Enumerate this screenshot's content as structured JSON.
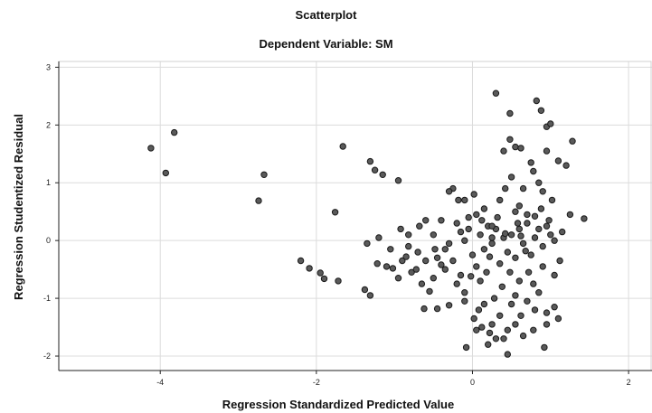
{
  "chart_data": {
    "type": "scatter",
    "title": "Scatterplot",
    "subtitle": "Dependent Variable: SM",
    "xlabel": "Regression Standardized Predicted Value",
    "ylabel": "Regression Studentized Residual",
    "xlim": [
      -5.3,
      2.3
    ],
    "ylim": [
      -2.25,
      3.1
    ],
    "xticks": [
      -4,
      -2,
      0,
      2
    ],
    "yticks": [
      -2,
      -1,
      0,
      1,
      2,
      3
    ],
    "xtick_labels": [
      "-4",
      "-2",
      "0",
      "2"
    ],
    "ytick_labels": [
      "-2",
      "-1",
      "0",
      "1",
      "2",
      "3"
    ],
    "grid": true,
    "points": [
      [
        -4.12,
        1.6
      ],
      [
        -3.82,
        1.87
      ],
      [
        -3.93,
        1.17
      ],
      [
        -2.67,
        1.14
      ],
      [
        -2.74,
        0.69
      ],
      [
        -1.66,
        1.63
      ],
      [
        -1.31,
        1.37
      ],
      [
        -1.25,
        1.22
      ],
      [
        -1.15,
        1.14
      ],
      [
        -0.95,
        1.04
      ],
      [
        -1.76,
        0.49
      ],
      [
        -2.2,
        -0.35
      ],
      [
        -2.09,
        -0.48
      ],
      [
        -1.95,
        -0.56
      ],
      [
        -1.9,
        -0.66
      ],
      [
        -1.72,
        -0.7
      ],
      [
        -1.38,
        -0.85
      ],
      [
        -1.31,
        -0.95
      ],
      [
        -1.35,
        -0.05
      ],
      [
        -1.2,
        0.05
      ],
      [
        -1.22,
        -0.4
      ],
      [
        -1.1,
        -0.45
      ],
      [
        -1.02,
        -0.48
      ],
      [
        -0.95,
        -0.65
      ],
      [
        -0.9,
        -0.35
      ],
      [
        -0.85,
        -0.28
      ],
      [
        -0.92,
        0.2
      ],
      [
        -0.82,
        -0.1
      ],
      [
        -0.78,
        -0.55
      ],
      [
        -0.7,
        -0.2
      ],
      [
        -0.65,
        -0.75
      ],
      [
        -0.6,
        -0.35
      ],
      [
        -0.55,
        -0.88
      ],
      [
        -0.5,
        0.1
      ],
      [
        -0.48,
        -0.15
      ],
      [
        -0.45,
        -0.3
      ],
      [
        -0.4,
        0.35
      ],
      [
        -0.35,
        -0.5
      ],
      [
        -0.3,
        -0.05
      ],
      [
        -0.25,
        -0.35
      ],
      [
        -0.2,
        0.3
      ],
      [
        -0.15,
        -0.6
      ],
      [
        -0.1,
        0.0
      ],
      [
        -0.05,
        0.2
      ],
      [
        0.0,
        -0.25
      ],
      [
        0.05,
        -0.45
      ],
      [
        0.1,
        0.1
      ],
      [
        0.15,
        -0.15
      ],
      [
        0.2,
        0.25
      ],
      [
        0.25,
        -0.05
      ],
      [
        0.3,
        0.2
      ],
      [
        0.35,
        -0.4
      ],
      [
        0.4,
        0.05
      ],
      [
        0.45,
        -0.2
      ],
      [
        0.5,
        0.1
      ],
      [
        0.55,
        -0.3
      ],
      [
        0.6,
        0.2
      ],
      [
        0.65,
        -0.05
      ],
      [
        0.7,
        0.3
      ],
      [
        0.75,
        -0.25
      ],
      [
        0.8,
        0.05
      ],
      [
        0.85,
        0.2
      ],
      [
        0.9,
        -0.1
      ],
      [
        0.95,
        0.25
      ],
      [
        1.0,
        0.1
      ],
      [
        -0.62,
        -1.18
      ],
      [
        -0.45,
        -1.18
      ],
      [
        -0.3,
        -1.12
      ],
      [
        -0.1,
        -1.05
      ],
      [
        -0.6,
        0.35
      ],
      [
        -0.25,
        0.9
      ],
      [
        -0.3,
        0.85
      ],
      [
        -0.1,
        0.7
      ],
      [
        0.02,
        0.8
      ],
      [
        -0.18,
        0.7
      ],
      [
        0.08,
        -1.2
      ],
      [
        0.02,
        -1.35
      ],
      [
        0.12,
        -1.5
      ],
      [
        0.22,
        -1.6
      ],
      [
        0.3,
        -1.7
      ],
      [
        0.4,
        -1.7
      ],
      [
        -0.08,
        -1.85
      ],
      [
        0.05,
        -1.55
      ],
      [
        0.2,
        -1.8
      ],
      [
        0.55,
        -1.45
      ],
      [
        0.65,
        -1.65
      ],
      [
        0.45,
        -1.97
      ],
      [
        0.92,
        -1.85
      ],
      [
        0.78,
        -1.55
      ],
      [
        1.1,
        -1.35
      ],
      [
        1.05,
        -1.15
      ],
      [
        0.95,
        -1.25
      ],
      [
        0.7,
        -1.05
      ],
      [
        0.5,
        -1.1
      ],
      [
        0.85,
        -0.9
      ],
      [
        1.12,
        -0.35
      ],
      [
        0.98,
        0.35
      ],
      [
        0.88,
        0.55
      ],
      [
        1.25,
        0.45
      ],
      [
        1.43,
        0.38
      ],
      [
        1.28,
        1.72
      ],
      [
        1.1,
        1.38
      ],
      [
        0.95,
        1.55
      ],
      [
        0.78,
        1.2
      ],
      [
        0.55,
        1.62
      ],
      [
        0.48,
        1.75
      ],
      [
        0.4,
        1.55
      ],
      [
        0.3,
        2.55
      ],
      [
        0.48,
        2.2
      ],
      [
        0.82,
        2.42
      ],
      [
        0.88,
        2.25
      ],
      [
        0.95,
        1.97
      ],
      [
        1.0,
        2.02
      ],
      [
        0.85,
        1.0
      ],
      [
        0.65,
        0.9
      ],
      [
        0.6,
        0.6
      ],
      [
        0.55,
        0.5
      ],
      [
        0.7,
        0.45
      ],
      [
        0.9,
        0.85
      ],
      [
        1.02,
        0.7
      ],
      [
        1.2,
        1.3
      ],
      [
        0.15,
        0.55
      ],
      [
        0.25,
        0.25
      ],
      [
        -0.05,
        0.4
      ],
      [
        0.35,
        0.7
      ],
      [
        0.75,
        1.35
      ],
      [
        0.62,
        1.6
      ],
      [
        0.5,
        1.1
      ],
      [
        0.42,
        0.9
      ],
      [
        0.05,
        0.45
      ],
      [
        -0.2,
        -0.75
      ],
      [
        -0.1,
        -0.9
      ],
      [
        0.1,
        -0.7
      ],
      [
        0.28,
        -1.0
      ],
      [
        0.6,
        -0.7
      ],
      [
        0.72,
        -0.55
      ],
      [
        0.9,
        -0.45
      ],
      [
        1.05,
        -0.6
      ],
      [
        0.18,
        -0.55
      ],
      [
        0.38,
        -0.8
      ],
      [
        -0.35,
        -0.15
      ],
      [
        -0.15,
        0.15
      ],
      [
        0.12,
        0.35
      ],
      [
        0.32,
        0.4
      ],
      [
        0.58,
        0.3
      ],
      [
        0.8,
        0.42
      ],
      [
        1.15,
        0.15
      ],
      [
        1.05,
        0.0
      ],
      [
        0.78,
        -0.75
      ],
      [
        0.48,
        -0.55
      ],
      [
        -0.5,
        -0.65
      ],
      [
        -0.72,
        -0.5
      ],
      [
        -0.82,
        0.1
      ],
      [
        -1.05,
        -0.15
      ],
      [
        -0.68,
        0.25
      ],
      [
        0.25,
        0.05
      ],
      [
        0.42,
        0.12
      ],
      [
        0.62,
        0.08
      ],
      [
        0.68,
        -0.18
      ],
      [
        0.22,
        -0.28
      ],
      [
        -0.02,
        -0.62
      ],
      [
        -0.4,
        -0.42
      ],
      [
        0.55,
        -0.95
      ],
      [
        0.35,
        -1.3
      ],
      [
        0.15,
        -1.1
      ],
      [
        0.8,
        -1.2
      ],
      [
        0.95,
        -1.45
      ],
      [
        0.62,
        -1.3
      ],
      [
        0.45,
        -1.55
      ],
      [
        0.25,
        -1.45
      ]
    ]
  }
}
